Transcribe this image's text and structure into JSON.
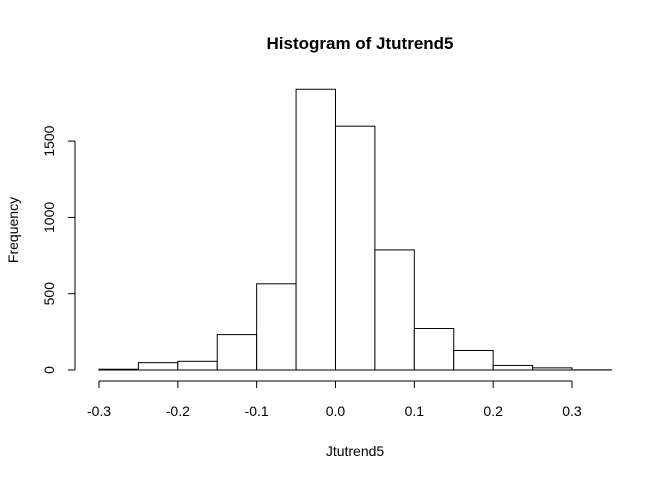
{
  "chart_data": {
    "type": "bar",
    "title": "Histogram of Jtutrend5",
    "xlabel": "Jtutrend5",
    "ylabel": "Frequency",
    "bins": [
      {
        "from": -0.3,
        "to": -0.25,
        "count": 5
      },
      {
        "from": -0.25,
        "to": -0.2,
        "count": 48
      },
      {
        "from": -0.2,
        "to": -0.15,
        "count": 57
      },
      {
        "from": -0.15,
        "to": -0.1,
        "count": 232
      },
      {
        "from": -0.1,
        "to": -0.05,
        "count": 565
      },
      {
        "from": -0.05,
        "to": 0.0,
        "count": 1840
      },
      {
        "from": 0.0,
        "to": 0.05,
        "count": 1598
      },
      {
        "from": 0.05,
        "to": 0.1,
        "count": 787
      },
      {
        "from": 0.1,
        "to": 0.15,
        "count": 272
      },
      {
        "from": 0.15,
        "to": 0.2,
        "count": 128
      },
      {
        "from": 0.2,
        "to": 0.25,
        "count": 30
      },
      {
        "from": 0.25,
        "to": 0.3,
        "count": 14
      },
      {
        "from": 0.3,
        "to": 0.35,
        "count": 1
      }
    ],
    "x_ticks": [
      -0.3,
      -0.2,
      -0.1,
      0.0,
      0.1,
      0.2,
      0.3
    ],
    "x_tick_labels": [
      "-0.3",
      "-0.2",
      "-0.1",
      "0.0",
      "0.1",
      "0.2",
      "0.3"
    ],
    "y_ticks": [
      0,
      500,
      1000,
      1500
    ],
    "y_tick_labels": [
      "0",
      "500",
      "1000",
      "1500"
    ],
    "xlim": [
      -0.3,
      0.35
    ],
    "ylim": [
      0,
      1840
    ],
    "grid": false,
    "legend": "none"
  }
}
